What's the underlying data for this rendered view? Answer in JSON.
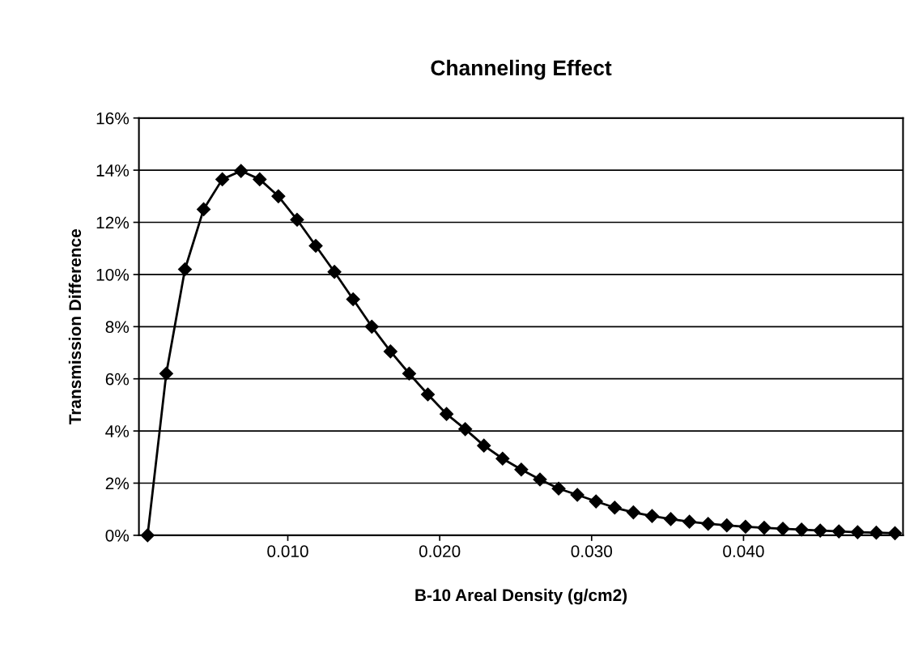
{
  "chart_data": {
    "type": "line",
    "title": "Channeling Effect",
    "xlabel": "B-10 Areal Density (g/cm2)",
    "ylabel": "Transmission Difference",
    "x": [
      0.00077,
      0.002,
      0.00323,
      0.00446,
      0.00569,
      0.00692,
      0.00815,
      0.00938,
      0.01061,
      0.01184,
      0.01307,
      0.0143,
      0.01553,
      0.01676,
      0.01799,
      0.01922,
      0.02045,
      0.02168,
      0.02291,
      0.02414,
      0.02537,
      0.0266,
      0.02783,
      0.02906,
      0.03029,
      0.03152,
      0.03275,
      0.03398,
      0.03521,
      0.03644,
      0.03767,
      0.0389,
      0.04013,
      0.04136,
      0.04259,
      0.04382,
      0.04505,
      0.04628,
      0.04751,
      0.04874,
      0.04997
    ],
    "series": [
      {
        "color": "#000000",
        "values": [
          0,
          6.2,
          10.2,
          12.5,
          13.65,
          13.97,
          13.65,
          13.0,
          12.1,
          11.1,
          10.1,
          9.05,
          8.0,
          7.05,
          6.2,
          5.4,
          4.65,
          4.07,
          3.44,
          2.94,
          2.52,
          2.14,
          1.79,
          1.55,
          1.3,
          1.06,
          0.88,
          0.74,
          0.62,
          0.52,
          0.44,
          0.38,
          0.33,
          0.29,
          0.25,
          0.22,
          0.18,
          0.15,
          0.12,
          0.1,
          0.08
        ]
      }
    ],
    "xlim": [
      0.0002,
      0.0505
    ],
    "xticks": [
      {
        "value": 0.01,
        "label": "0.010"
      },
      {
        "value": 0.02,
        "label": "0.020"
      },
      {
        "value": 0.03,
        "label": "0.030"
      },
      {
        "value": 0.04,
        "label": "0.040"
      }
    ],
    "ylim": [
      0,
      16
    ],
    "yticks": [
      {
        "value": 0,
        "label": "0%"
      },
      {
        "value": 2,
        "label": "2%"
      },
      {
        "value": 4,
        "label": "4%"
      },
      {
        "value": 6,
        "label": "6%"
      },
      {
        "value": 8,
        "label": "8%"
      },
      {
        "value": 10,
        "label": "10%"
      },
      {
        "value": 12,
        "label": "12%"
      },
      {
        "value": 14,
        "label": "14%"
      },
      {
        "value": 16,
        "label": "16%"
      }
    ],
    "grid": "y",
    "marker": "diamond",
    "line_style": "solid"
  }
}
